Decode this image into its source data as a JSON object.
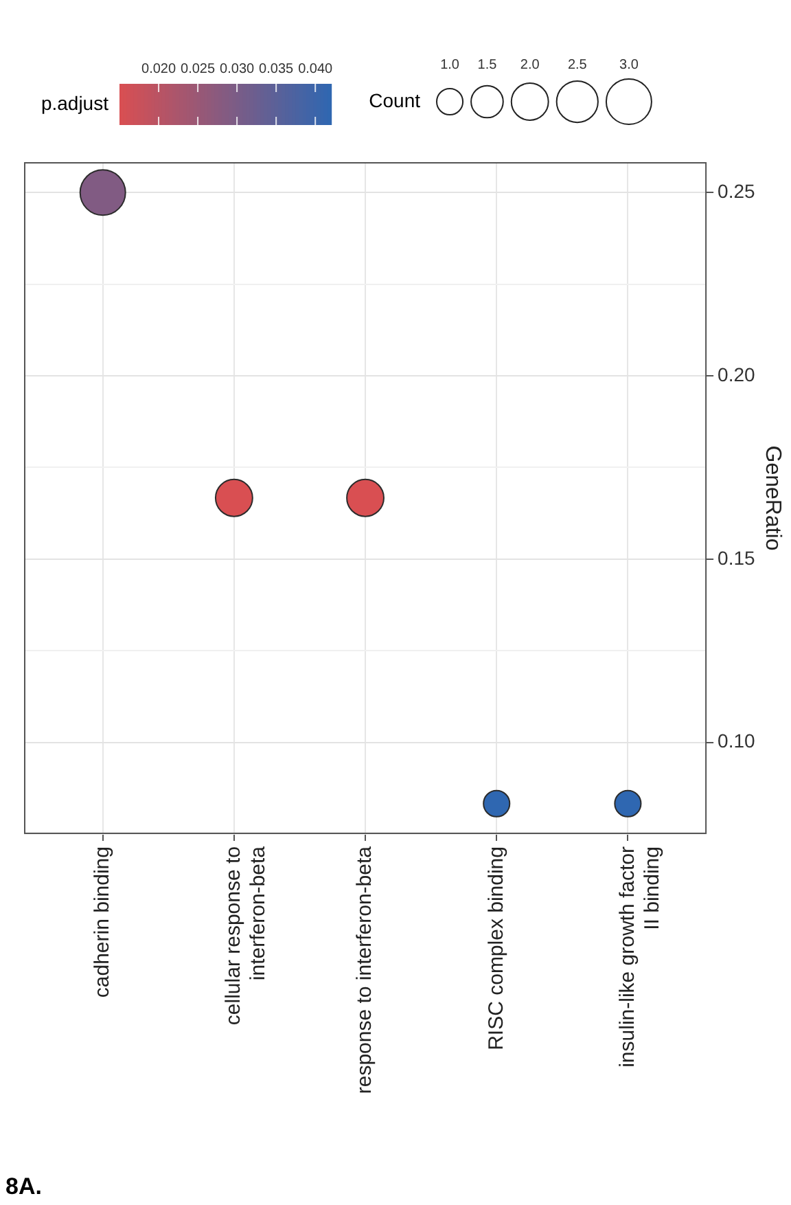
{
  "chart_data": {
    "type": "bubble",
    "title": "8A.",
    "ylabel": "GeneRatio",
    "clabel": "p.adjust",
    "legend_title": "Count",
    "categories": [
      "cadherin binding",
      "cellular response to interferon-beta",
      "response to interferon-beta",
      "RISC complex binding",
      "insulin-like growth factor II binding"
    ],
    "values": [
      0.25,
      0.1667,
      0.1667,
      0.0833,
      0.0833
    ],
    "sizes": [
      3,
      2,
      2,
      1,
      1
    ],
    "cvalues": [
      0.029,
      0.015,
      0.015,
      0.042,
      0.042
    ],
    "size_legend": [
      {
        "value": 1,
        "label": "1.0"
      },
      {
        "value": 1.5,
        "label": "1.5"
      },
      {
        "value": 2,
        "label": "2.0"
      },
      {
        "value": 2.5,
        "label": "2.5"
      },
      {
        "value": 3,
        "label": "3.0"
      }
    ],
    "clim": [
      0.015,
      0.042
    ],
    "cticks": [
      {
        "value": 0.02,
        "label": "0.020"
      },
      {
        "value": 0.025,
        "label": "0.025"
      },
      {
        "value": 0.03,
        "label": "0.030"
      },
      {
        "value": 0.035,
        "label": "0.035"
      },
      {
        "value": 0.04,
        "label": "0.040"
      }
    ],
    "ylim": [
      0.075,
      0.2583
    ],
    "yticks": [
      {
        "value": 0.075,
        "label": null
      },
      {
        "value": 0.1,
        "label": "0.10"
      },
      {
        "value": 0.125,
        "label": null
      },
      {
        "value": 0.15,
        "label": "0.15"
      },
      {
        "value": 0.175,
        "label": null
      },
      {
        "value": 0.2,
        "label": "0.20"
      },
      {
        "value": 0.225,
        "label": null
      },
      {
        "value": 0.25,
        "label": "0.25"
      }
    ],
    "grid": true,
    "marker": "circle"
  }
}
